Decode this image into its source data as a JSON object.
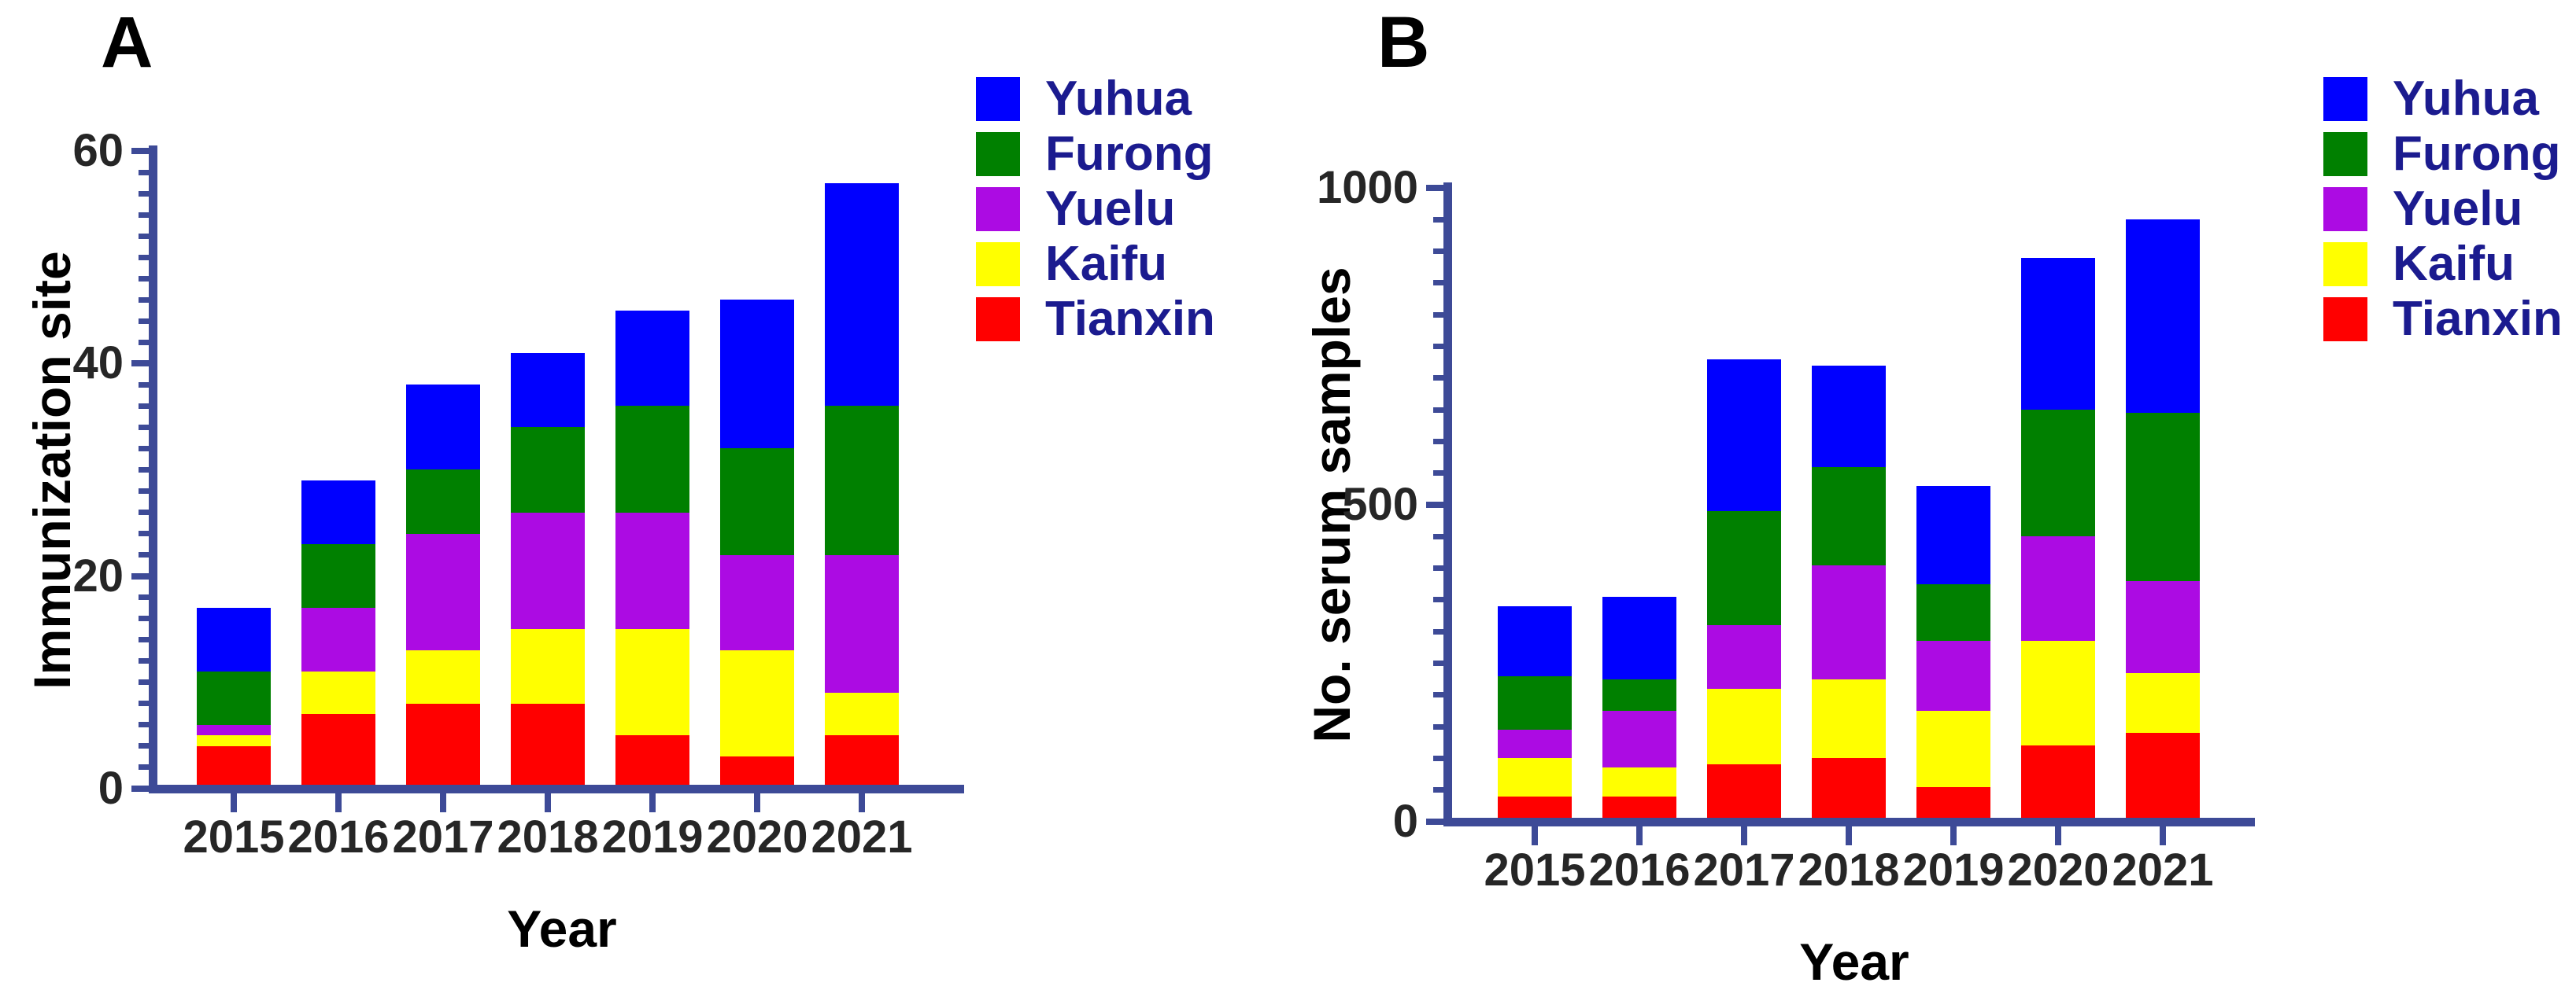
{
  "figure": {
    "title": "",
    "panel_count": 2
  },
  "colors": {
    "background": "#FFFFFF",
    "axis": "#3D4A97",
    "tick_label": "#262626",
    "axis_title": "#000000",
    "panel_letter": "#000000",
    "legend_text": "#1B1B8F",
    "yuhua_blue": "#0000FF",
    "furong_green": "#008000",
    "yuelu_purple": "#AC0BE3",
    "kaifu_yellow": "#FFFF00",
    "tianxin_red": "#FF0000"
  },
  "legend": {
    "entries": [
      {
        "label": "Yuhua",
        "color": "#0000FF"
      },
      {
        "label": "Furong",
        "color": "#008000"
      },
      {
        "label": "Yuelu",
        "color": "#AC0BE3"
      },
      {
        "label": "Kaifu",
        "color": "#FFFF00"
      },
      {
        "label": "Tianxin",
        "color": "#FF0000"
      }
    ]
  },
  "chart_data": [
    {
      "type": "bar",
      "stacked": true,
      "panel": "A",
      "title": "",
      "y_title": "Immunization site",
      "x_title": "Year",
      "categories": [
        "2015",
        "2016",
        "2017",
        "2018",
        "2019",
        "2020",
        "2021"
      ],
      "series": [
        {
          "name": "Tianxin",
          "color": "#FF0000",
          "values": [
            4,
            7,
            8,
            8,
            5,
            3,
            5
          ]
        },
        {
          "name": "Kaifu",
          "color": "#FFFF00",
          "values": [
            1,
            4,
            5,
            7,
            10,
            10,
            4
          ]
        },
        {
          "name": "Yuelu",
          "color": "#AC0BE3",
          "values": [
            1,
            6,
            11,
            11,
            11,
            9,
            13
          ]
        },
        {
          "name": "Furong",
          "color": "#008000",
          "values": [
            5,
            6,
            6,
            8,
            10,
            10,
            14
          ]
        },
        {
          "name": "Yuhua",
          "color": "#0000FF",
          "values": [
            6,
            6,
            8,
            7,
            9,
            14,
            21
          ]
        }
      ],
      "stack_order": "bottom-to-top",
      "totals": [
        17,
        29,
        38,
        41,
        45,
        46,
        57
      ],
      "ylim": [
        0,
        60
      ],
      "yticks": [
        0,
        20,
        40,
        60
      ],
      "ytick_labels": [
        "0",
        "20",
        "40",
        "60"
      ],
      "minor_tick_step": 2,
      "grid": false,
      "legend_position": "right-top"
    },
    {
      "type": "bar",
      "stacked": true,
      "panel": "B",
      "title": "",
      "y_title": "No. serum samples",
      "x_title": "Year",
      "categories": [
        "2015",
        "2016",
        "2017",
        "2018",
        "2019",
        "2020",
        "2021"
      ],
      "series": [
        {
          "name": "Tianxin",
          "color": "#FF0000",
          "values": [
            40,
            40,
            90,
            100,
            55,
            120,
            140
          ]
        },
        {
          "name": "Kaifu",
          "color": "#FFFF00",
          "values": [
            60,
            45,
            120,
            125,
            120,
            165,
            95
          ]
        },
        {
          "name": "Yuelu",
          "color": "#AC0BE3",
          "values": [
            45,
            90,
            100,
            180,
            110,
            165,
            145
          ]
        },
        {
          "name": "Furong",
          "color": "#008000",
          "values": [
            85,
            50,
            180,
            155,
            90,
            200,
            265
          ]
        },
        {
          "name": "Yuhua",
          "color": "#0000FF",
          "values": [
            110,
            130,
            240,
            160,
            155,
            240,
            305
          ]
        }
      ],
      "stack_order": "bottom-to-top",
      "totals": [
        340,
        355,
        730,
        720,
        530,
        890,
        950
      ],
      "ylim": [
        0,
        1000
      ],
      "yticks": [
        0,
        500,
        1000
      ],
      "ytick_labels": [
        "0",
        "500",
        "1000"
      ],
      "minor_tick_step": 50,
      "grid": false,
      "legend_position": "right-top"
    }
  ]
}
